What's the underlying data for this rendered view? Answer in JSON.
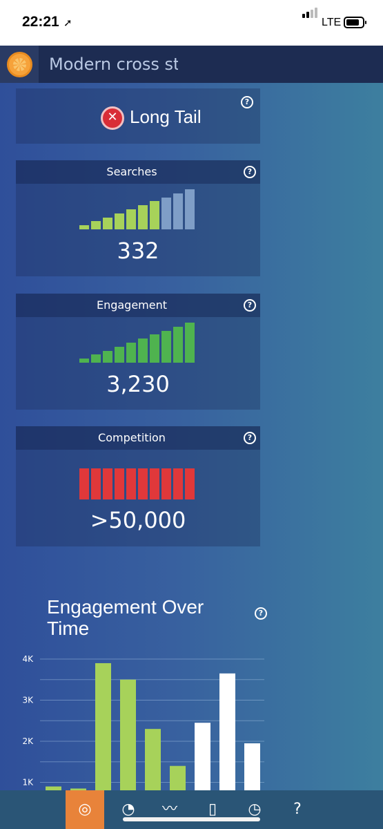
{
  "status_bar": {
    "time": "22:21",
    "network": "LTE"
  },
  "search": {
    "value": "Modern cross stit"
  },
  "long_tail": {
    "label": "Long Tail"
  },
  "searches": {
    "title": "Searches",
    "value": "332",
    "level": 7,
    "total": 10,
    "active_color": "#a7d25a",
    "inactive_color": "#7f9ec7"
  },
  "engagement": {
    "title": "Engagement",
    "value": "3,230",
    "level": 10,
    "total": 10,
    "active_color": "#4fb34f"
  },
  "competition": {
    "title": "Competition",
    "value": ">50,000",
    "level": 10,
    "total": 10,
    "active_color": "#e0383a"
  },
  "chart": {
    "title": "Engagement Over Time",
    "chart_data": {
      "type": "bar",
      "y_ticks": [
        "4K",
        "3K",
        "2K",
        "1K"
      ],
      "ylim": [
        0,
        4000
      ],
      "grid": true,
      "values": [
        900,
        850,
        3900,
        3500,
        2300,
        1400,
        2450,
        3650,
        1950
      ],
      "colors": [
        "#a7d25a",
        "#a7d25a",
        "#a7d25a",
        "#a7d25a",
        "#a7d25a",
        "#a7d25a",
        "#ffffff",
        "#ffffff",
        "#ffffff"
      ]
    }
  },
  "nav": {
    "items": [
      {
        "icon": "compass-icon",
        "active": true
      },
      {
        "icon": "speedometer-icon",
        "active": false
      },
      {
        "icon": "trend-line-icon",
        "active": false
      },
      {
        "icon": "notebook-icon",
        "active": false
      },
      {
        "icon": "clock-icon",
        "active": false
      },
      {
        "icon": "help-icon",
        "active": false
      }
    ]
  }
}
